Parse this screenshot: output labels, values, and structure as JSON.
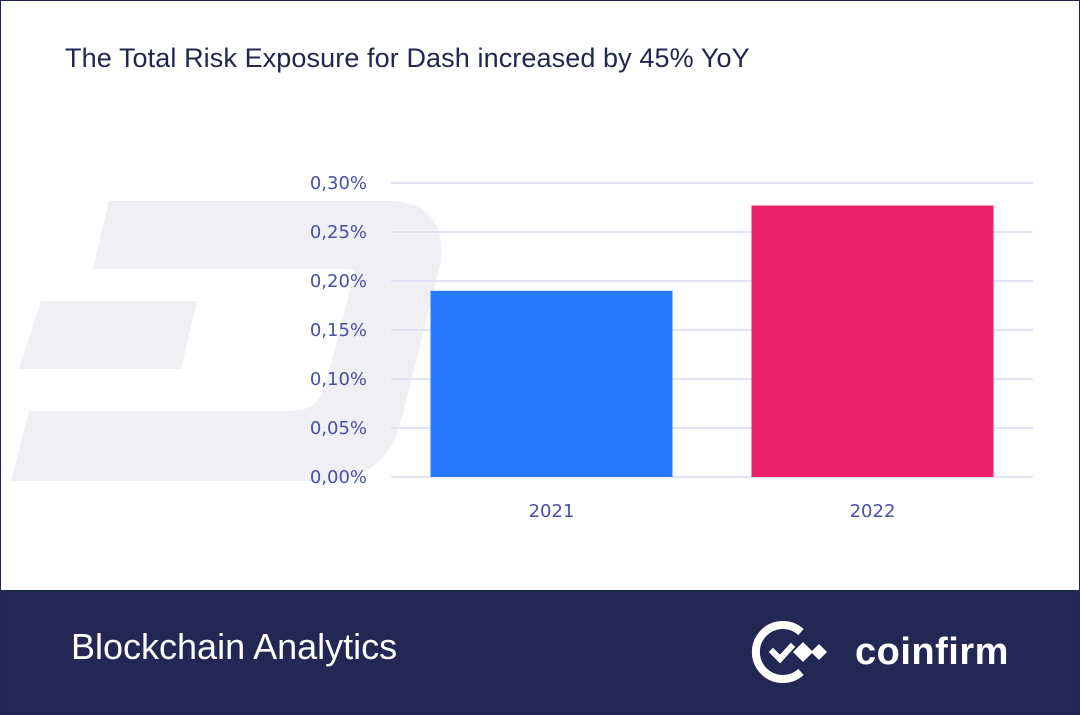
{
  "title": "The Total Risk Exposure for Dash increased by 45% YoY",
  "footer": {
    "label": "Blockchain Analytics",
    "brand": "coinfirm"
  },
  "icons": {
    "watermark": "dash-logo-icon",
    "brand": "coinfirm-logo-icon"
  },
  "colors": {
    "bar_2021": "#2979ff",
    "bar_2022": "#ea2068",
    "footer_bg": "#222753",
    "grid": "#d9dbef",
    "ticks": "#4a4fa8"
  },
  "chart_data": {
    "type": "bar",
    "title": "The Total Risk Exposure for Dash increased by 45% YoY",
    "xlabel": "",
    "ylabel": "",
    "categories": [
      "2021",
      "2022"
    ],
    "values": [
      0.19,
      0.277
    ],
    "unit": "%",
    "ylim": [
      0,
      0.3
    ],
    "yticks": [
      0.0,
      0.05,
      0.1,
      0.15,
      0.2,
      0.25,
      0.3
    ],
    "ytick_labels": [
      "0,00%",
      "0,05%",
      "0,10%",
      "0,15%",
      "0,20%",
      "0,25%",
      "0,30%"
    ],
    "grid": true,
    "legend": "none"
  }
}
